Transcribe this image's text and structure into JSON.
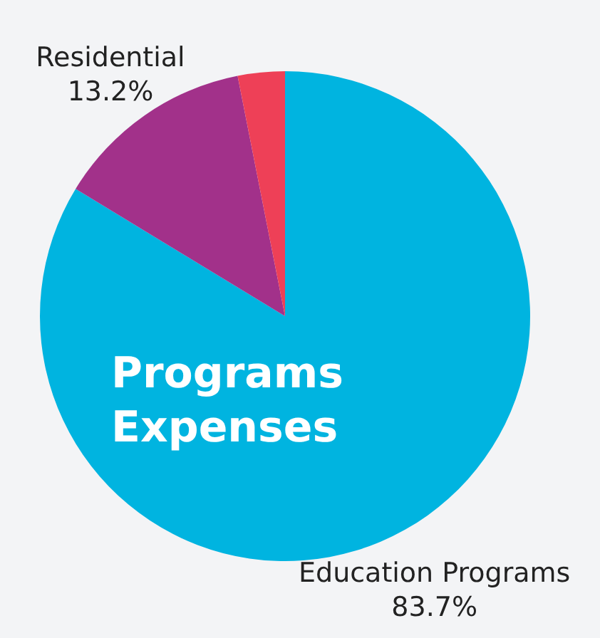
{
  "chart_data": {
    "type": "pie",
    "title": "Programs Expenses",
    "categories": [
      "Education Programs",
      "Residential",
      null
    ],
    "values": [
      83.7,
      13.2,
      3.1
    ],
    "colors": [
      "#00b4e0",
      "#a2318a",
      "#ee4057"
    ],
    "value_labels": [
      "83.7%",
      "13.2%",
      null
    ],
    "legend": false
  }
}
